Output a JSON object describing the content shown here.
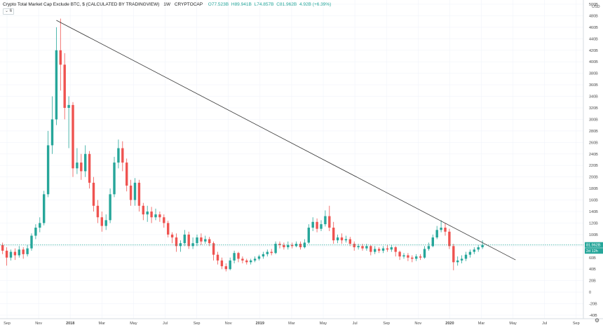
{
  "header": {
    "title": "Crypto Total Market Cap Exclude BTC, $ (CALCULATED BY TRADINGVIEW)",
    "interval": "1W",
    "symbol": "CRYPTOCAP",
    "ohlc": {
      "open": "O77.523B",
      "high": "H89.941B",
      "low": "L74.857B",
      "close": "C81.962B",
      "change": "4.92B (+6.39%)"
    },
    "indicator_badge": "6"
  },
  "price_axis": {
    "currency": "USD",
    "labels": [
      "500B",
      "480B",
      "460B",
      "440B",
      "420B",
      "400B",
      "380B",
      "360B",
      "340B",
      "320B",
      "300B",
      "280B",
      "260B",
      "240B",
      "220B",
      "200B",
      "180B",
      "160B",
      "140B",
      "120B",
      "100B",
      "80B",
      "60B",
      "40B",
      "20B",
      "0",
      "-20B",
      "-40B"
    ],
    "last_price": "81.962B",
    "countdown": "2d 12h"
  },
  "time_axis": {
    "labels": [
      "Sep",
      "Nov",
      "2018",
      "Mar",
      "May",
      "Jul",
      "Sep",
      "Nov",
      "2019",
      "Mar",
      "May",
      "Jul",
      "Sep",
      "Nov",
      "2020",
      "Mar",
      "May",
      "Jul",
      "Sep"
    ]
  },
  "colors": {
    "up": "#26a69a",
    "down": "#ef5350",
    "trendline": "#333333",
    "last_price_line": "#26a69a"
  },
  "chart_data": {
    "type": "candlestick",
    "title": "Crypto Total Market Cap Exclude BTC, $ (CALCULATED BY TRADINGVIEW)",
    "interval": "1W",
    "ylim": [
      -40,
      500
    ],
    "y_unit": "B USD",
    "grid": true,
    "candles": [
      {
        "o": 82,
        "c": 72,
        "h": 86,
        "l": 66
      },
      {
        "o": 72,
        "c": 60,
        "h": 78,
        "l": 46
      },
      {
        "o": 60,
        "c": 70,
        "h": 74,
        "l": 55
      },
      {
        "o": 70,
        "c": 64,
        "h": 76,
        "l": 56
      },
      {
        "o": 64,
        "c": 74,
        "h": 80,
        "l": 60
      },
      {
        "o": 74,
        "c": 66,
        "h": 78,
        "l": 58
      },
      {
        "o": 66,
        "c": 76,
        "h": 82,
        "l": 62
      },
      {
        "o": 76,
        "c": 98,
        "h": 102,
        "l": 72
      },
      {
        "o": 98,
        "c": 112,
        "h": 118,
        "l": 92
      },
      {
        "o": 112,
        "c": 120,
        "h": 130,
        "l": 104
      },
      {
        "o": 120,
        "c": 170,
        "h": 176,
        "l": 116
      },
      {
        "o": 170,
        "c": 255,
        "h": 280,
        "l": 165
      },
      {
        "o": 255,
        "c": 300,
        "h": 340,
        "l": 240
      },
      {
        "o": 300,
        "c": 420,
        "h": 460,
        "l": 290
      },
      {
        "o": 420,
        "c": 395,
        "h": 475,
        "l": 350
      },
      {
        "o": 395,
        "c": 320,
        "h": 415,
        "l": 300
      },
      {
        "o": 320,
        "c": 325,
        "h": 340,
        "l": 250
      },
      {
        "o": 325,
        "c": 215,
        "h": 330,
        "l": 200
      },
      {
        "o": 215,
        "c": 225,
        "h": 250,
        "l": 205
      },
      {
        "o": 225,
        "c": 210,
        "h": 240,
        "l": 195
      },
      {
        "o": 210,
        "c": 240,
        "h": 255,
        "l": 200
      },
      {
        "o": 240,
        "c": 190,
        "h": 245,
        "l": 180
      },
      {
        "o": 190,
        "c": 150,
        "h": 200,
        "l": 140
      },
      {
        "o": 150,
        "c": 130,
        "h": 160,
        "l": 120
      },
      {
        "o": 130,
        "c": 115,
        "h": 140,
        "l": 105
      },
      {
        "o": 115,
        "c": 125,
        "h": 135,
        "l": 108
      },
      {
        "o": 125,
        "c": 170,
        "h": 180,
        "l": 120
      },
      {
        "o": 170,
        "c": 225,
        "h": 235,
        "l": 165
      },
      {
        "o": 225,
        "c": 250,
        "h": 265,
        "l": 215
      },
      {
        "o": 250,
        "c": 225,
        "h": 262,
        "l": 210
      },
      {
        "o": 225,
        "c": 185,
        "h": 232,
        "l": 175
      },
      {
        "o": 185,
        "c": 160,
        "h": 195,
        "l": 150
      },
      {
        "o": 160,
        "c": 190,
        "h": 198,
        "l": 150
      },
      {
        "o": 190,
        "c": 150,
        "h": 195,
        "l": 140
      },
      {
        "o": 150,
        "c": 135,
        "h": 155,
        "l": 125
      },
      {
        "o": 135,
        "c": 140,
        "h": 150,
        "l": 122
      },
      {
        "o": 140,
        "c": 130,
        "h": 148,
        "l": 120
      },
      {
        "o": 130,
        "c": 135,
        "h": 145,
        "l": 125
      },
      {
        "o": 135,
        "c": 130,
        "h": 140,
        "l": 122
      },
      {
        "o": 130,
        "c": 120,
        "h": 135,
        "l": 112
      },
      {
        "o": 120,
        "c": 100,
        "h": 124,
        "l": 95
      },
      {
        "o": 100,
        "c": 95,
        "h": 104,
        "l": 85
      },
      {
        "o": 95,
        "c": 80,
        "h": 102,
        "l": 70
      },
      {
        "o": 80,
        "c": 85,
        "h": 90,
        "l": 70
      },
      {
        "o": 85,
        "c": 100,
        "h": 108,
        "l": 80
      },
      {
        "o": 100,
        "c": 80,
        "h": 105,
        "l": 75
      },
      {
        "o": 80,
        "c": 85,
        "h": 95,
        "l": 75
      },
      {
        "o": 85,
        "c": 95,
        "h": 100,
        "l": 80
      },
      {
        "o": 95,
        "c": 88,
        "h": 102,
        "l": 82
      },
      {
        "o": 88,
        "c": 92,
        "h": 98,
        "l": 84
      },
      {
        "o": 92,
        "c": 85,
        "h": 96,
        "l": 80
      },
      {
        "o": 85,
        "c": 65,
        "h": 88,
        "l": 55
      },
      {
        "o": 65,
        "c": 55,
        "h": 70,
        "l": 48
      },
      {
        "o": 55,
        "c": 45,
        "h": 60,
        "l": 40
      },
      {
        "o": 45,
        "c": 40,
        "h": 50,
        "l": 36
      },
      {
        "o": 40,
        "c": 55,
        "h": 60,
        "l": 38
      },
      {
        "o": 55,
        "c": 68,
        "h": 72,
        "l": 50
      },
      {
        "o": 68,
        "c": 58,
        "h": 70,
        "l": 52
      },
      {
        "o": 58,
        "c": 55,
        "h": 62,
        "l": 50
      },
      {
        "o": 55,
        "c": 52,
        "h": 58,
        "l": 48
      },
      {
        "o": 52,
        "c": 55,
        "h": 58,
        "l": 48
      },
      {
        "o": 55,
        "c": 58,
        "h": 62,
        "l": 52
      },
      {
        "o": 58,
        "c": 62,
        "h": 65,
        "l": 55
      },
      {
        "o": 62,
        "c": 66,
        "h": 70,
        "l": 58
      },
      {
        "o": 66,
        "c": 70,
        "h": 74,
        "l": 62
      },
      {
        "o": 70,
        "c": 68,
        "h": 75,
        "l": 64
      },
      {
        "o": 68,
        "c": 84,
        "h": 88,
        "l": 66
      },
      {
        "o": 84,
        "c": 82,
        "h": 88,
        "l": 76
      },
      {
        "o": 82,
        "c": 78,
        "h": 86,
        "l": 74
      },
      {
        "o": 78,
        "c": 82,
        "h": 88,
        "l": 74
      },
      {
        "o": 82,
        "c": 80,
        "h": 86,
        "l": 76
      },
      {
        "o": 80,
        "c": 84,
        "h": 88,
        "l": 78
      },
      {
        "o": 84,
        "c": 78,
        "h": 88,
        "l": 74
      },
      {
        "o": 78,
        "c": 86,
        "h": 92,
        "l": 76
      },
      {
        "o": 86,
        "c": 112,
        "h": 118,
        "l": 84
      },
      {
        "o": 112,
        "c": 122,
        "h": 130,
        "l": 106
      },
      {
        "o": 122,
        "c": 110,
        "h": 128,
        "l": 104
      },
      {
        "o": 110,
        "c": 118,
        "h": 125,
        "l": 106
      },
      {
        "o": 118,
        "c": 132,
        "h": 142,
        "l": 114
      },
      {
        "o": 132,
        "c": 112,
        "h": 150,
        "l": 106
      },
      {
        "o": 112,
        "c": 90,
        "h": 122,
        "l": 84
      },
      {
        "o": 90,
        "c": 95,
        "h": 100,
        "l": 85
      },
      {
        "o": 95,
        "c": 90,
        "h": 102,
        "l": 84
      },
      {
        "o": 90,
        "c": 92,
        "h": 98,
        "l": 86
      },
      {
        "o": 92,
        "c": 84,
        "h": 96,
        "l": 80
      },
      {
        "o": 84,
        "c": 78,
        "h": 88,
        "l": 72
      },
      {
        "o": 78,
        "c": 80,
        "h": 84,
        "l": 74
      },
      {
        "o": 80,
        "c": 76,
        "h": 84,
        "l": 72
      },
      {
        "o": 76,
        "c": 80,
        "h": 84,
        "l": 72
      },
      {
        "o": 80,
        "c": 70,
        "h": 82,
        "l": 64
      },
      {
        "o": 70,
        "c": 75,
        "h": 80,
        "l": 66
      },
      {
        "o": 75,
        "c": 72,
        "h": 78,
        "l": 68
      },
      {
        "o": 72,
        "c": 76,
        "h": 80,
        "l": 68
      },
      {
        "o": 76,
        "c": 74,
        "h": 82,
        "l": 70
      },
      {
        "o": 74,
        "c": 78,
        "h": 82,
        "l": 70
      },
      {
        "o": 78,
        "c": 70,
        "h": 80,
        "l": 62
      },
      {
        "o": 70,
        "c": 62,
        "h": 72,
        "l": 56
      },
      {
        "o": 62,
        "c": 64,
        "h": 68,
        "l": 58
      },
      {
        "o": 64,
        "c": 60,
        "h": 68,
        "l": 54
      },
      {
        "o": 60,
        "c": 58,
        "h": 64,
        "l": 52
      },
      {
        "o": 58,
        "c": 62,
        "h": 66,
        "l": 54
      },
      {
        "o": 62,
        "c": 60,
        "h": 66,
        "l": 56
      },
      {
        "o": 60,
        "c": 75,
        "h": 80,
        "l": 58
      },
      {
        "o": 75,
        "c": 80,
        "h": 86,
        "l": 72
      },
      {
        "o": 80,
        "c": 95,
        "h": 100,
        "l": 78
      },
      {
        "o": 95,
        "c": 108,
        "h": 115,
        "l": 92
      },
      {
        "o": 108,
        "c": 112,
        "h": 125,
        "l": 104
      },
      {
        "o": 112,
        "c": 105,
        "h": 120,
        "l": 98
      },
      {
        "o": 105,
        "c": 80,
        "h": 110,
        "l": 75
      },
      {
        "o": 80,
        "c": 52,
        "h": 84,
        "l": 38
      },
      {
        "o": 52,
        "c": 55,
        "h": 62,
        "l": 46
      },
      {
        "o": 55,
        "c": 58,
        "h": 64,
        "l": 50
      },
      {
        "o": 58,
        "c": 65,
        "h": 70,
        "l": 54
      },
      {
        "o": 65,
        "c": 70,
        "h": 74,
        "l": 60
      },
      {
        "o": 70,
        "c": 74,
        "h": 78,
        "l": 66
      },
      {
        "o": 74,
        "c": 78,
        "h": 82,
        "l": 70
      },
      {
        "o": 78,
        "c": 82,
        "h": 90,
        "l": 75
      }
    ],
    "trendline": {
      "from": {
        "candle": 13,
        "y": 472
      },
      "to": {
        "candle": 124,
        "y": 56
      }
    },
    "last_price": 81.962
  }
}
